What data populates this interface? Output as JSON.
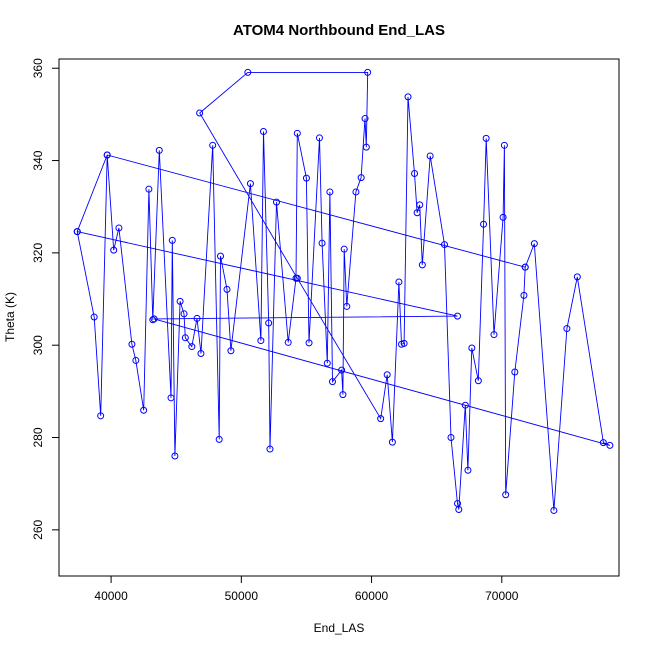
{
  "chart_data": {
    "type": "line",
    "title": "ATOM4 Northbound End_LAS",
    "xlabel": "End_LAS",
    "ylabel": "Theta (K)",
    "xlim": [
      36000,
      79000
    ],
    "ylim": [
      250,
      362
    ],
    "x_ticks": [
      40000,
      50000,
      60000,
      70000
    ],
    "y_ticks": [
      260,
      280,
      300,
      320,
      340,
      360
    ],
    "series_color": "#0000ff",
    "markers": "open-circle",
    "grid": false,
    "series": [
      {
        "x": [
          37400,
          38700,
          39200,
          39700,
          40200,
          40600,
          41600,
          41900,
          42500,
          42900,
          43200,
          43700,
          44600,
          44700,
          44900,
          45300,
          45600,
          45700,
          46200,
          46600,
          46900,
          47800,
          48300,
          48400,
          48900,
          49200,
          50700,
          51500,
          51700,
          52100,
          52200,
          52700,
          53600,
          54200,
          54300,
          55000,
          55200,
          56000,
          56200,
          56600,
          56800,
          57000,
          57700,
          57800,
          57900,
          58100,
          58800,
          59200,
          59500,
          59600,
          59700,
          50500,
          46800,
          54300,
          60700,
          61200,
          61600,
          62100,
          62300,
          62500,
          62800,
          63300,
          63500,
          63700,
          63900,
          64500,
          65600,
          66100,
          66600,
          66700,
          67200,
          67400,
          67700,
          68200,
          68600,
          68800,
          69400,
          70100,
          70200,
          70300,
          71000,
          71700,
          71800,
          72500,
          74000,
          75000,
          75800,
          77800,
          78300,
          43300,
          66600,
          37400,
          39700,
          71800
        ],
        "y": [
          324.6,
          306.1,
          284.7,
          341.2,
          320.6,
          325.4,
          300.2,
          296.7,
          285.9,
          333.8,
          305.5,
          342.2,
          288.6,
          322.7,
          276.0,
          309.5,
          306.8,
          301.6,
          299.7,
          305.8,
          298.2,
          343.3,
          279.6,
          319.3,
          312.1,
          298.8,
          335.0,
          301.0,
          346.3,
          304.8,
          277.5,
          331.0,
          300.6,
          314.5,
          345.9,
          336.2,
          300.5,
          344.9,
          322.1,
          296.1,
          333.2,
          292.1,
          294.6,
          289.3,
          320.8,
          308.4,
          333.2,
          336.3,
          349.1,
          342.9,
          359.1,
          359.1,
          350.3,
          314.5,
          284.1,
          293.6,
          279.0,
          313.7,
          300.2,
          300.4,
          353.8,
          337.2,
          328.7,
          330.4,
          317.4,
          341.0,
          321.8,
          280.0,
          265.7,
          264.4,
          287.0,
          272.9,
          299.4,
          292.3,
          326.2,
          344.8,
          302.3,
          327.7,
          343.3,
          267.6,
          294.2,
          310.8,
          316.9,
          322.0,
          264.2,
          303.6,
          314.8,
          278.9,
          278.3,
          305.7,
          306.3,
          324.6,
          341.2,
          316.9
        ]
      }
    ]
  }
}
